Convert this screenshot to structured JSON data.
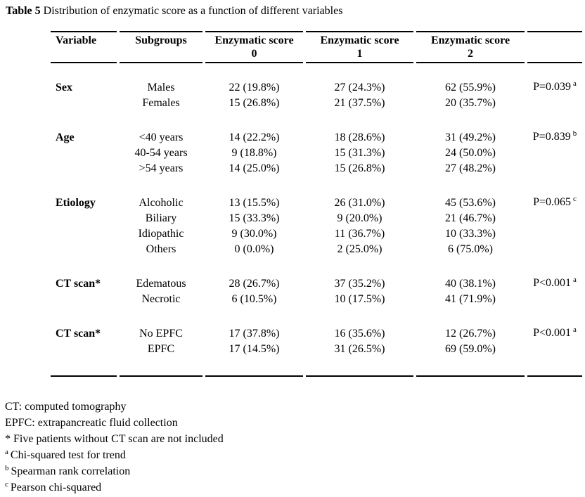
{
  "title": {
    "label": "Table 5",
    "text": "Distribution of enzymatic score as a function of different variables"
  },
  "table": {
    "header": {
      "variable": "Variable",
      "subgroups": "Subgroups",
      "score_columns": [
        {
          "line1": "Enzymatic score",
          "line2": "0"
        },
        {
          "line1": "Enzymatic score",
          "line2": "1"
        },
        {
          "line1": "Enzymatic score",
          "line2": "2"
        }
      ],
      "pvalue": ""
    },
    "sections": [
      {
        "variable": "Sex",
        "p_value": "P=0.039",
        "p_sup": "a",
        "rows": [
          {
            "subgroup": "Males",
            "scores": [
              "22 (19.8%)",
              "27 (24.3%)",
              "62 (55.9%)"
            ]
          },
          {
            "subgroup": "Females",
            "scores": [
              "15 (26.8%)",
              "21 (37.5%)",
              "20 (35.7%)"
            ]
          }
        ]
      },
      {
        "variable": "Age",
        "p_value": "P=0.839",
        "p_sup": "b",
        "rows": [
          {
            "subgroup": "<40 years",
            "scores": [
              "14 (22.2%)",
              "18 (28.6%)",
              "31 (49.2%)"
            ]
          },
          {
            "subgroup": "40-54 years",
            "scores": [
              "9 (18.8%)",
              "15 (31.3%)",
              "24 (50.0%)"
            ]
          },
          {
            "subgroup": ">54 years",
            "scores": [
              "14 (25.0%)",
              "15 (26.8%)",
              "27 (48.2%)"
            ]
          }
        ]
      },
      {
        "variable": "Etiology",
        "p_value": "P=0.065",
        "p_sup": "c",
        "rows": [
          {
            "subgroup": "Alcoholic",
            "scores": [
              "13 (15.5%)",
              "26 (31.0%)",
              "45 (53.6%)"
            ]
          },
          {
            "subgroup": "Biliary",
            "scores": [
              "15 (33.3%)",
              "9 (20.0%)",
              "21 (46.7%)"
            ]
          },
          {
            "subgroup": "Idiopathic",
            "scores": [
              "9 (30.0%)",
              "11 (36.7%)",
              "10 (33.3%)"
            ]
          },
          {
            "subgroup": "Others",
            "scores": [
              "0 (0.0%)",
              "2 (25.0%)",
              "6 (75.0%)"
            ]
          }
        ]
      },
      {
        "variable": "CT scan*",
        "p_value": "P<0.001",
        "p_sup": "a",
        "rows": [
          {
            "subgroup": "Edematous",
            "scores": [
              "28 (26.7%)",
              "37 (35.2%)",
              "40 (38.1%)"
            ]
          },
          {
            "subgroup": "Necrotic",
            "scores": [
              "6 (10.5%)",
              "10 (17.5%)",
              "41 (71.9%)"
            ]
          }
        ]
      },
      {
        "variable": "CT scan*",
        "p_value": "P<0.001",
        "p_sup": "a",
        "rows": [
          {
            "subgroup": "No EPFC",
            "scores": [
              "17 (37.8%)",
              "16 (35.6%)",
              "12 (26.7%)"
            ]
          },
          {
            "subgroup": "EPFC",
            "scores": [
              "17 (14.5%)",
              "31 (26.5%)",
              "69 (59.0%)"
            ]
          }
        ]
      }
    ]
  },
  "footnotes": [
    {
      "sup": "",
      "text": "CT: computed tomography"
    },
    {
      "sup": "",
      "text": "EPFC: extrapancreatic fluid collection"
    },
    {
      "sup": "",
      "text": "* Five patients without CT scan are not included"
    },
    {
      "sup": "a",
      "text": "Chi-squared test for trend"
    },
    {
      "sup": "b",
      "text": "Spearman rank correlation"
    },
    {
      "sup": "c",
      "text": "Pearson chi-squared"
    }
  ]
}
